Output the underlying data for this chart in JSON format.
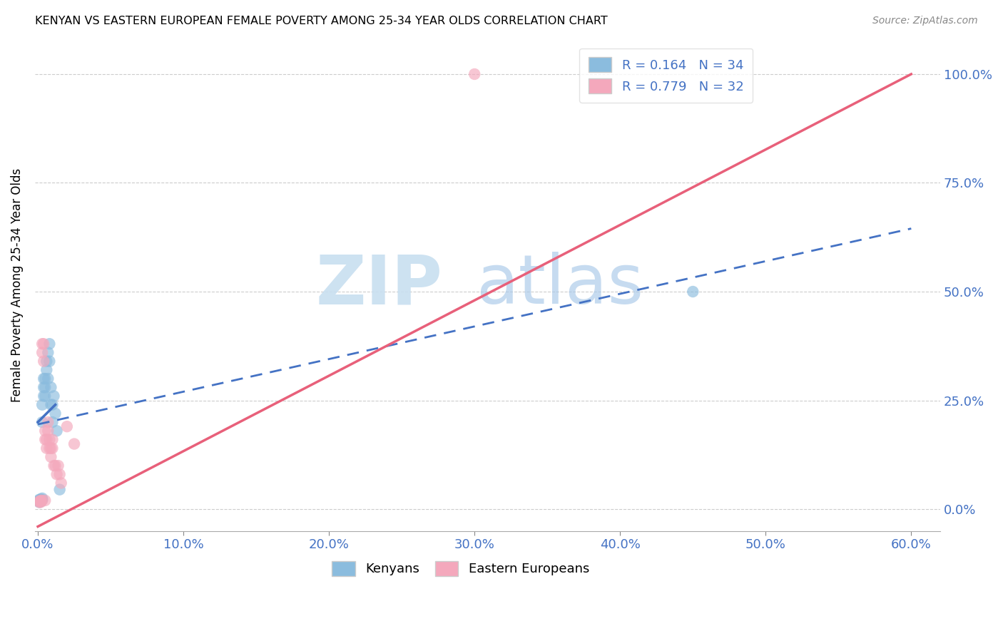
{
  "title": "KENYAN VS EASTERN EUROPEAN FEMALE POVERTY AMONG 25-34 YEAR OLDS CORRELATION CHART",
  "source": "Source: ZipAtlas.com",
  "xlim": [
    -0.002,
    0.62
  ],
  "ylim": [
    -0.05,
    1.08
  ],
  "x_tick_vals": [
    0.0,
    0.1,
    0.2,
    0.3,
    0.4,
    0.5,
    0.6
  ],
  "x_tick_labels": [
    "0.0%",
    "10.0%",
    "20.0%",
    "30.0%",
    "40.0%",
    "50.0%",
    "60.0%"
  ],
  "y_tick_vals": [
    0.0,
    0.25,
    0.5,
    0.75,
    1.0
  ],
  "y_tick_labels": [
    "0.0%",
    "25.0%",
    "50.0%",
    "75.0%",
    "100.0%"
  ],
  "R_kenyan": 0.164,
  "N_kenyan": 34,
  "R_eastern": 0.779,
  "N_eastern": 32,
  "kenyan_color": "#8BBCDE",
  "eastern_color": "#F4A8BC",
  "kenyan_line_color": "#4472C4",
  "eastern_line_color": "#E8607A",
  "grid_color": "#CCCCCC",
  "legend_labels": [
    "Kenyans",
    "Eastern Europeans"
  ],
  "kenyan_x": [
    0.001,
    0.001,
    0.001,
    0.001,
    0.002,
    0.002,
    0.002,
    0.002,
    0.002,
    0.003,
    0.003,
    0.003,
    0.003,
    0.004,
    0.004,
    0.004,
    0.005,
    0.005,
    0.005,
    0.006,
    0.006,
    0.007,
    0.007,
    0.008,
    0.008,
    0.009,
    0.009,
    0.01,
    0.01,
    0.011,
    0.012,
    0.013,
    0.015,
    0.45
  ],
  "kenyan_y": [
    0.02,
    0.018,
    0.022,
    0.016,
    0.02,
    0.022,
    0.018,
    0.02,
    0.022,
    0.025,
    0.022,
    0.2,
    0.24,
    0.28,
    0.3,
    0.26,
    0.26,
    0.28,
    0.3,
    0.32,
    0.34,
    0.36,
    0.3,
    0.38,
    0.34,
    0.24,
    0.28,
    0.2,
    0.24,
    0.26,
    0.22,
    0.18,
    0.045,
    0.5
  ],
  "eastern_x": [
    0.001,
    0.001,
    0.002,
    0.002,
    0.002,
    0.003,
    0.003,
    0.003,
    0.004,
    0.004,
    0.005,
    0.005,
    0.005,
    0.006,
    0.006,
    0.007,
    0.007,
    0.008,
    0.008,
    0.009,
    0.009,
    0.01,
    0.01,
    0.011,
    0.012,
    0.013,
    0.014,
    0.015,
    0.016,
    0.02,
    0.025,
    0.3
  ],
  "eastern_y": [
    0.018,
    0.016,
    0.02,
    0.018,
    0.016,
    0.02,
    0.38,
    0.36,
    0.38,
    0.34,
    0.02,
    0.18,
    0.16,
    0.16,
    0.14,
    0.2,
    0.18,
    0.14,
    0.16,
    0.14,
    0.12,
    0.16,
    0.14,
    0.1,
    0.1,
    0.08,
    0.1,
    0.08,
    0.06,
    0.19,
    0.15,
    1.0
  ],
  "kenyan_line_x": [
    0.0,
    0.6
  ],
  "kenyan_line_y": [
    0.195,
    0.645
  ],
  "eastern_line_x": [
    0.0,
    0.6
  ],
  "eastern_line_y": [
    -0.04,
    1.0
  ]
}
